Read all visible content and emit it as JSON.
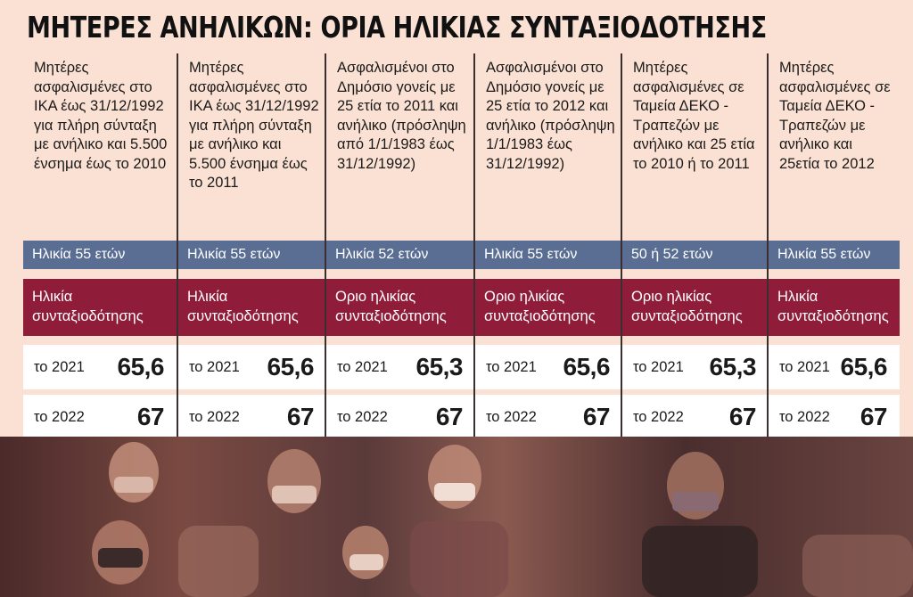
{
  "title": "ΜΗΤΕΡΕΣ ΑΝΗΛΙΚΩΝ: ΟΡΙΑ ΗΛΙΚΙΑΣ ΣΥΝΤΑΞΙΟΔΟΤΗΣΗΣ",
  "chart_data": {
    "type": "table",
    "title": "ΜΗΤΕΡΕΣ ΑΝΗΛΙΚΩΝ: ΟΡΙΑ ΗΛΙΚΙΑΣ ΣΥΝΤΑΞΙΟΔΟΤΗΣΗΣ",
    "year_labels": [
      "το 2021",
      "το 2022"
    ],
    "columns": [
      {
        "description": "Μητέρες ασφαλισμένες στο ΙΚΑ έως 31/12/1992 για πλήρη σύνταξη με ανήλικο και 5.500 ένσημα έως το 2010",
        "age": "Ηλικία 55 ετών",
        "retirement_label": "Ηλικία συνταξιοδότησης",
        "value_2021": "65,6",
        "value_2022": "67"
      },
      {
        "description": "Μητέρες ασφαλισμένες στο ΙΚΑ έως 31/12/1992 για πλήρη σύνταξη με ανήλικο και 5.500 ένσημα έως το 2011",
        "age": "Ηλικία 55 ετών",
        "retirement_label": "Ηλικία συνταξιοδότησης",
        "value_2021": "65,6",
        "value_2022": "67"
      },
      {
        "description": "Ασφαλισμένοι στο Δημόσιο γονείς με 25 ετία το 2011 και ανήλικο (πρόσληψη από 1/1/1983 έως 31/12/1992)",
        "age": "Ηλικία 52 ετών",
        "retirement_label": "Οριο ηλικίας συνταξιοδότησης",
        "value_2021": "65,3",
        "value_2022": "67"
      },
      {
        "description": "Ασφαλισμένοι στο Δημόσιο γονείς με 25 ετία το 2012 και ανήλικο (πρόσληψη 1/1/1983 έως 31/12/1992)",
        "age": "Ηλικία 55 ετών",
        "retirement_label": "Οριο ηλικίας συνταξιοδότησης",
        "value_2021": "65,6",
        "value_2022": "67"
      },
      {
        "description": "Μητέρες ασφαλισμένες σε Ταμεία ΔΕΚΟ - Τραπεζών με ανήλικο και 25 ετία το 2010 ή το 2011",
        "age": "50 ή 52 ετών",
        "retirement_label": "Οριο ηλικίας συνταξιοδότησης",
        "value_2021": "65,3",
        "value_2022": "67"
      },
      {
        "description": "Μητέρες ασφαλισμένες σε Ταμεία ΔΕΚΟ - Τραπεζών με ανήλικο και 25ετία το 2012",
        "age": "Ηλικία 55 ετών",
        "retirement_label": "Ηλικία συνταξιοδότησης",
        "value_2021": "65,6",
        "value_2022": "67"
      }
    ]
  },
  "colors": {
    "background": "#fbe1d3",
    "age_band": "#5a6e93",
    "retirement_band": "#8f1d3a",
    "value_rows": "#ffffff"
  }
}
